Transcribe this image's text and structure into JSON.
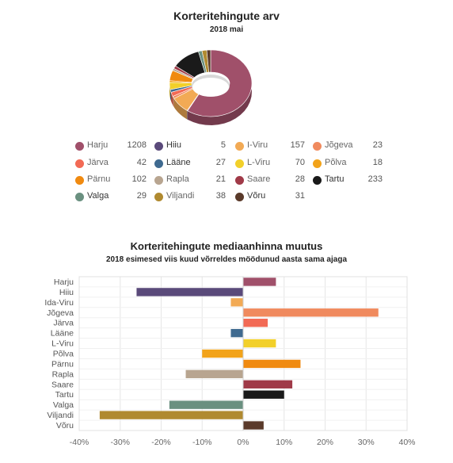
{
  "chart_data": [
    {
      "type": "pie",
      "title": "Korteritehingute arv",
      "subtitle": "2018 mai",
      "categories": [
        "Harju",
        "Hiiu",
        "I-Viru",
        "Jõgeva",
        "Järva",
        "Lääne",
        "L-Viru",
        "Põlva",
        "Pärnu",
        "Rapla",
        "Saare",
        "Tartu",
        "Valga",
        "Viljandi",
        "Võru"
      ],
      "values": [
        1208,
        5,
        157,
        23,
        42,
        27,
        70,
        18,
        102,
        21,
        28,
        233,
        29,
        38,
        31
      ],
      "colors": [
        "#a0506a",
        "#5a4a7a",
        "#f2aa55",
        "#f08a5e",
        "#f26a55",
        "#3f6a90",
        "#f2d02a",
        "#f2a31a",
        "#f08a10",
        "#b8a590",
        "#a03a48",
        "#1a1a1a",
        "#6a9080",
        "#b08a30",
        "#5a3a2a"
      ],
      "legend_position": "bottom"
    },
    {
      "type": "bar",
      "orientation": "horizontal",
      "title": "Korteritehingute mediaanhinna muutus",
      "subtitle": "2018 esimesed viis kuud võrreldes möödunud aasta sama ajaga",
      "categories": [
        "Harju",
        "Hiiu",
        "Ida-Viru",
        "Jõgeva",
        "Järva",
        "Lääne",
        "L-Viru",
        "Põlva",
        "Pärnu",
        "Rapla",
        "Saare",
        "Tartu",
        "Valga",
        "Viljandi",
        "Võru"
      ],
      "values": [
        8,
        -26,
        -3,
        33,
        6,
        -3,
        8,
        -10,
        14,
        -14,
        12,
        10,
        -18,
        -35,
        5
      ],
      "unit": "%",
      "xlim": [
        -40,
        40
      ],
      "xticks": [
        -40,
        -30,
        -20,
        -10,
        0,
        10,
        20,
        30,
        40
      ],
      "xtick_labels": [
        "-40%",
        "-30%",
        "-20%",
        "-10%",
        "0%",
        "10%",
        "20%",
        "30%",
        "40%"
      ],
      "colors": [
        "#a0506a",
        "#5a4a7a",
        "#f2aa55",
        "#f08a5e",
        "#f26a55",
        "#3f6a90",
        "#f2d02a",
        "#f2a31a",
        "#f08a10",
        "#b8a590",
        "#a03a48",
        "#1a1a1a",
        "#6a9080",
        "#b08a30",
        "#5a3a2a"
      ],
      "grid": true
    }
  ]
}
